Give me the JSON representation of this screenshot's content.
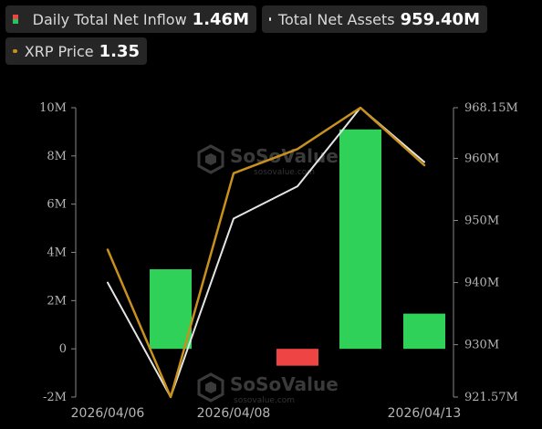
{
  "legend": [
    {
      "label": "Daily Total Net Inflow",
      "value": "1.46M",
      "swatch": "bar"
    },
    {
      "label": "Total Net Assets",
      "value": "959.40M",
      "swatch": "line",
      "color": "#e5e5e5"
    },
    {
      "label": "XRP Price",
      "value": "1.35",
      "swatch": "line",
      "color": "#c8901c"
    }
  ],
  "watermark": {
    "brand": "SoSoValue",
    "site": "sosovalue.com"
  },
  "chart_data": {
    "type": "bar",
    "x_labels": [
      "2026/04/06",
      "2026/04/08",
      "2026/04/13"
    ],
    "categories": [
      "d1",
      "d2",
      "d3",
      "d4",
      "d5",
      "d6"
    ],
    "y_left": {
      "ticks": [
        "10M",
        "8M",
        "6M",
        "4M",
        "2M",
        "0",
        "-2M"
      ],
      "min": -2,
      "max": 10,
      "unit": "M"
    },
    "y_right": {
      "ticks": [
        "968.15M",
        "960M",
        "950M",
        "940M",
        "930M",
        "921.57M"
      ],
      "min": 921.57,
      "max": 968.15
    },
    "series": [
      {
        "name": "Daily Total Net Inflow",
        "kind": "bar",
        "axis": "left",
        "values": [
          null,
          3.3,
          null,
          -0.7,
          9.1,
          1.46
        ],
        "positive_color": "#30d158",
        "negative_color": "#ef4444"
      },
      {
        "name": "Total Net Assets",
        "kind": "line",
        "axis": "right",
        "color": "#e5e5e5",
        "values": [
          940.0,
          921.57,
          950.3,
          955.5,
          968.15,
          959.4
        ]
      },
      {
        "name": "XRP Price",
        "kind": "line",
        "axis": "right",
        "color": "#c8901c",
        "values": [
          945.3,
          921.57,
          957.6,
          961.5,
          968.15,
          958.9
        ]
      }
    ],
    "grid": false,
    "legend_position": "top-left"
  }
}
